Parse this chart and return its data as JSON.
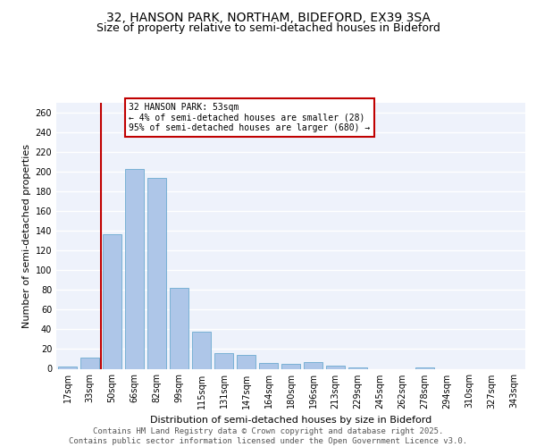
{
  "title1": "32, HANSON PARK, NORTHAM, BIDEFORD, EX39 3SA",
  "title2": "Size of property relative to semi-detached houses in Bideford",
  "xlabel": "Distribution of semi-detached houses by size in Bideford",
  "ylabel": "Number of semi-detached properties",
  "categories": [
    "17sqm",
    "33sqm",
    "50sqm",
    "66sqm",
    "82sqm",
    "99sqm",
    "115sqm",
    "131sqm",
    "147sqm",
    "164sqm",
    "180sqm",
    "196sqm",
    "213sqm",
    "229sqm",
    "245sqm",
    "262sqm",
    "278sqm",
    "294sqm",
    "310sqm",
    "327sqm",
    "343sqm"
  ],
  "values": [
    2,
    11,
    137,
    203,
    194,
    82,
    38,
    16,
    14,
    6,
    5,
    7,
    3,
    1,
    0,
    0,
    1,
    0,
    0,
    0,
    0
  ],
  "bar_color": "#aec6e8",
  "bar_edge_color": "#6baad0",
  "highlight_bar_index": 2,
  "highlight_color": "#c00000",
  "ylim": [
    0,
    270
  ],
  "yticks": [
    0,
    20,
    40,
    60,
    80,
    100,
    120,
    140,
    160,
    180,
    200,
    220,
    240,
    260
  ],
  "annotation_text": "32 HANSON PARK: 53sqm\n← 4% of semi-detached houses are smaller (28)\n95% of semi-detached houses are larger (680) →",
  "annotation_box_color": "#ffffff",
  "annotation_box_edge_color": "#c00000",
  "footer_text": "Contains HM Land Registry data © Crown copyright and database right 2025.\nContains public sector information licensed under the Open Government Licence v3.0.",
  "background_color": "#eef2fb",
  "grid_color": "#ffffff",
  "title1_fontsize": 10,
  "title2_fontsize": 9,
  "xlabel_fontsize": 8,
  "ylabel_fontsize": 8,
  "tick_fontsize": 7,
  "annotation_fontsize": 7,
  "footer_fontsize": 6.5
}
